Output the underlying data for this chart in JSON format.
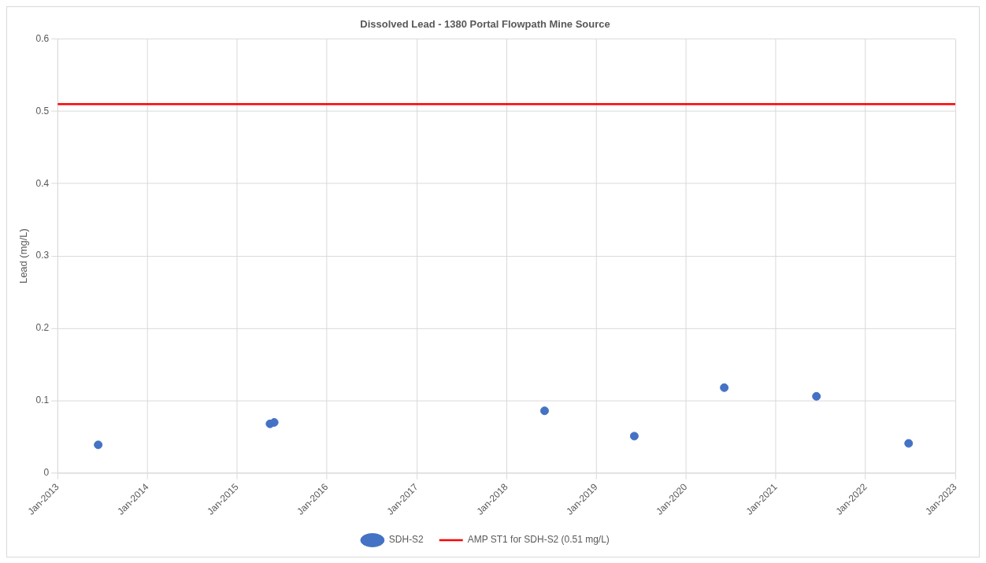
{
  "chart_data": {
    "type": "scatter",
    "title": "Dissolved Lead - 1380 Portal Flowpath Mine Source",
    "ylabel": "Lead (mg/L)",
    "series": [
      {
        "name": "SDH-S2",
        "color": "#4472c4",
        "x": [
          "2013-06-15",
          "2015-05-15",
          "2015-06-01",
          "2018-06-05",
          "2019-06-05",
          "2020-06-05",
          "2021-06-15",
          "2022-06-25"
        ],
        "values": [
          0.039,
          0.068,
          0.07,
          0.086,
          0.051,
          0.118,
          0.106,
          0.041
        ]
      }
    ],
    "ref_lines": [
      {
        "axis": "y",
        "value": 0.51,
        "label": "AMP ST1 for SDH-S2 (0.51 mg/L)",
        "color": "#ff0000"
      }
    ],
    "xlim": [
      "2013-01",
      "2023-01"
    ],
    "xticks": [
      {
        "value": "2013-01",
        "label": "Jan-2013"
      },
      {
        "value": "2014-01",
        "label": "Jan-2014"
      },
      {
        "value": "2015-01",
        "label": "Jan-2015"
      },
      {
        "value": "2016-01",
        "label": "Jan-2016"
      },
      {
        "value": "2017-01",
        "label": "Jan-2017"
      },
      {
        "value": "2018-01",
        "label": "Jan-2018"
      },
      {
        "value": "2019-01",
        "label": "Jan-2019"
      },
      {
        "value": "2020-01",
        "label": "Jan-2020"
      },
      {
        "value": "2021-01",
        "label": "Jan-2021"
      },
      {
        "value": "2022-01",
        "label": "Jan-2022"
      },
      {
        "value": "2023-01",
        "label": "Jan-2023"
      }
    ],
    "ylim": [
      0,
      0.6
    ],
    "yticks": [
      0,
      0.1,
      0.2,
      0.3,
      0.4,
      0.5,
      0.6
    ],
    "grid": true,
    "legend": "bottom",
    "marker": "circle"
  }
}
